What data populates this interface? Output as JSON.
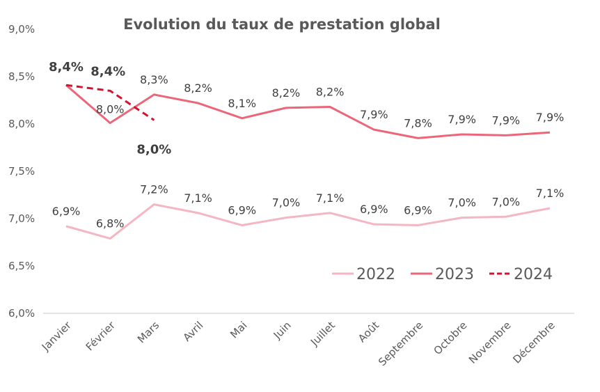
{
  "chart_data": {
    "type": "line",
    "title": "Evolution du taux de prestation global",
    "xlabel": "",
    "ylabel": "",
    "categories": [
      "Janvier",
      "Février",
      "Mars",
      "Avril",
      "Mai",
      "Juin",
      "Juillet",
      "Août",
      "Septembre",
      "Octobre",
      "Novembre",
      "Décembre"
    ],
    "ylim": [
      6.0,
      9.0
    ],
    "yticks": [
      "6,0%",
      "6,5%",
      "7,0%",
      "7,5%",
      "8,0%",
      "8,5%",
      "9,0%"
    ],
    "ytick_values": [
      6.0,
      6.5,
      7.0,
      7.5,
      8.0,
      8.5,
      9.0
    ],
    "grid": false,
    "legend_position": "bottom-right",
    "series": [
      {
        "name": "2022",
        "color": "#F4B6C2",
        "style": "solid",
        "bold_labels": false,
        "values": [
          6.92,
          6.79,
          7.15,
          7.06,
          6.93,
          7.01,
          7.06,
          6.94,
          6.93,
          7.01,
          7.02,
          7.11
        ],
        "labels": [
          "6,9%",
          "6,8%",
          "7,2%",
          "7,1%",
          "6,9%",
          "7,0%",
          "7,1%",
          "6,9%",
          "6,9%",
          "7,0%",
          "7,0%",
          "7,1%"
        ]
      },
      {
        "name": "2023",
        "color": "#EC6679",
        "style": "solid",
        "bold_labels": false,
        "values": [
          8.41,
          8.01,
          8.31,
          8.22,
          8.06,
          8.17,
          8.18,
          7.94,
          7.85,
          7.89,
          7.88,
          7.91
        ],
        "labels": [
          "8,4%",
          "8,0%",
          "8,3%",
          "8,2%",
          "8,1%",
          "8,2%",
          "8,2%",
          "7,9%",
          "7,8%",
          "7,9%",
          "7,9%",
          "7,9%"
        ]
      },
      {
        "name": "2024",
        "color": "#D7102F",
        "style": "dashed",
        "bold_labels": true,
        "values": [
          8.41,
          8.35,
          8.04
        ],
        "labels": [
          "8,4%",
          "8,4%",
          "8,0%"
        ]
      }
    ]
  }
}
